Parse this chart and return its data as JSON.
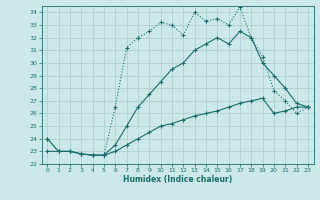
{
  "xlabel": "Humidex (Indice chaleur)",
  "ylabel": "",
  "bg_color": "#cce8e8",
  "grid_color": "#b0d0d0",
  "line_color": "#1a6e6a",
  "xlim": [
    -0.5,
    23.5
  ],
  "ylim": [
    22,
    34.5
  ],
  "xticks": [
    0,
    1,
    2,
    3,
    4,
    5,
    6,
    7,
    8,
    9,
    10,
    11,
    12,
    13,
    14,
    15,
    16,
    17,
    18,
    19,
    20,
    21,
    22,
    23
  ],
  "yticks": [
    22,
    23,
    24,
    25,
    26,
    27,
    28,
    29,
    30,
    31,
    32,
    33,
    34
  ],
  "line1_x": [
    0,
    1,
    2,
    3,
    4,
    5,
    6,
    7,
    8,
    9,
    10,
    11,
    12,
    13,
    14,
    15,
    16,
    17,
    18,
    19,
    20,
    21,
    22,
    23
  ],
  "line1_y": [
    23.0,
    23.0,
    23.0,
    22.8,
    22.7,
    22.7,
    23.0,
    23.5,
    24.0,
    24.5,
    25.0,
    25.2,
    25.5,
    25.8,
    26.0,
    26.2,
    26.5,
    26.8,
    27.0,
    27.2,
    26.0,
    26.2,
    26.5,
    26.5
  ],
  "line2_x": [
    0,
    1,
    2,
    3,
    4,
    5,
    6,
    7,
    8,
    9,
    10,
    11,
    12,
    13,
    14,
    15,
    16,
    17,
    18,
    19,
    20,
    21,
    22,
    23
  ],
  "line2_y": [
    24.0,
    23.0,
    23.0,
    22.8,
    22.7,
    22.7,
    23.5,
    25.0,
    26.5,
    27.5,
    28.5,
    29.5,
    30.0,
    31.0,
    31.5,
    32.0,
    31.5,
    32.5,
    32.0,
    30.0,
    29.0,
    28.0,
    26.8,
    26.5
  ],
  "line3_x": [
    0,
    1,
    2,
    3,
    4,
    5,
    6,
    7,
    8,
    9,
    10,
    11,
    12,
    13,
    14,
    15,
    16,
    17,
    18,
    19,
    20,
    21,
    22,
    23
  ],
  "line3_y": [
    24.0,
    23.0,
    23.0,
    22.8,
    22.7,
    22.7,
    26.5,
    31.2,
    32.0,
    32.5,
    33.2,
    33.0,
    32.2,
    34.0,
    33.3,
    33.5,
    33.0,
    34.4,
    32.0,
    30.5,
    27.8,
    27.0,
    26.0,
    26.5
  ],
  "line1_dotted": true,
  "line2_dotted": false,
  "line3_dotted": false
}
